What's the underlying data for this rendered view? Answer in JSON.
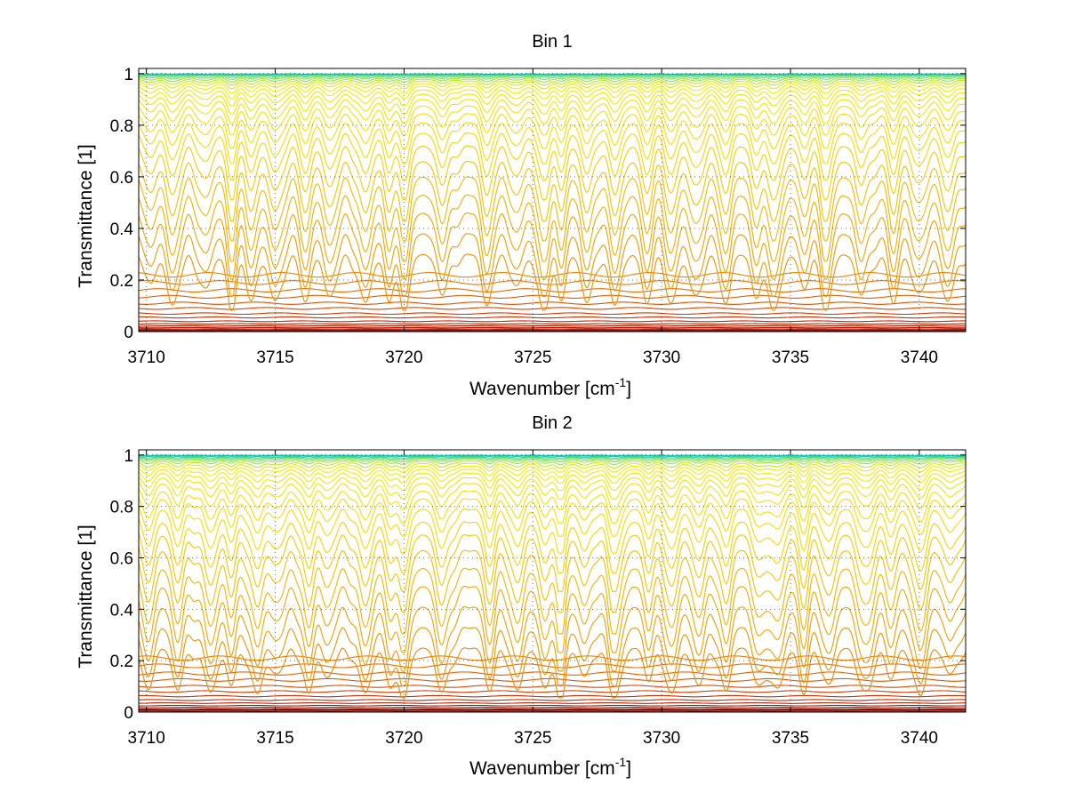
{
  "chart_data": [
    {
      "type": "line",
      "title": "Bin 1",
      "xlabel": "Wavenumber [cm",
      "xlabel_sup": "-1",
      "xlabel_end": "]",
      "ylabel": "Transmittance [1]",
      "xlim": [
        3709.7,
        3741.8
      ],
      "ylim": [
        0,
        1.02
      ],
      "xticks": [
        3710,
        3715,
        3720,
        3725,
        3730,
        3735,
        3740
      ],
      "yticks": [
        0,
        0.2,
        0.4,
        0.6,
        0.8,
        1
      ],
      "ytick_labels": [
        "0",
        "0.2",
        "0.4",
        "0.6",
        "0.8",
        "1"
      ],
      "grid": true,
      "absorption_line_centers": [
        3710.2,
        3711.0,
        3712.3,
        3713.3,
        3714.1,
        3715.0,
        3716.2,
        3717.1,
        3718.5,
        3719.4,
        3720.0,
        3721.5,
        3723.2,
        3724.4,
        3725.4,
        3726.1,
        3727.1,
        3728.2,
        3729.4,
        3730.4,
        3731.3,
        3732.5,
        3733.7,
        3734.4,
        3735.5,
        3736.4,
        3737.8,
        3739.0,
        3740.0,
        3741.1
      ],
      "series_baselines": [
        0.0,
        0.003,
        0.006,
        0.01,
        0.015,
        0.022,
        0.03,
        0.04,
        0.055,
        0.07,
        0.09,
        0.11,
        0.135,
        0.16,
        0.19,
        0.22,
        0.3,
        0.38,
        0.46,
        0.53,
        0.6,
        0.66,
        0.72,
        0.77,
        0.81,
        0.845,
        0.875,
        0.9,
        0.92,
        0.937,
        0.951,
        0.962,
        0.971,
        0.978,
        0.984,
        0.989,
        0.993,
        0.996,
        0.998,
        0.999
      ],
      "colors": [
        "#7f0000",
        "#d52a00",
        "#f28a00",
        "#ffd700",
        "#f0f000",
        "#00c8c0"
      ]
    },
    {
      "type": "line",
      "title": "Bin 2",
      "xlabel": "Wavenumber [cm",
      "xlabel_sup": "-1",
      "xlabel_end": "]",
      "ylabel": "Transmittance [1]",
      "xlim": [
        3709.7,
        3741.8
      ],
      "ylim": [
        0,
        1.02
      ],
      "xticks": [
        3710,
        3715,
        3720,
        3725,
        3730,
        3735,
        3740
      ],
      "yticks": [
        0,
        0.2,
        0.4,
        0.6,
        0.8,
        1
      ],
      "ytick_labels": [
        "0",
        "0.2",
        "0.4",
        "0.6",
        "0.8",
        "1"
      ],
      "grid": true,
      "absorption_line_centers": [
        3710.1,
        3711.2,
        3712.5,
        3713.3,
        3714.3,
        3715.0,
        3716.3,
        3717.0,
        3718.5,
        3719.5,
        3720.0,
        3721.5,
        3723.3,
        3724.4,
        3725.5,
        3726.1,
        3727.0,
        3728.2,
        3729.5,
        3730.4,
        3731.4,
        3732.5,
        3733.8,
        3734.5,
        3735.5,
        3736.5,
        3737.9,
        3738.9,
        3740.0,
        3741.2
      ],
      "series_baselines": [
        0.0,
        0.004,
        0.008,
        0.012,
        0.018,
        0.025,
        0.035,
        0.047,
        0.062,
        0.08,
        0.1,
        0.125,
        0.15,
        0.18,
        0.21,
        0.25,
        0.33,
        0.41,
        0.49,
        0.56,
        0.63,
        0.69,
        0.74,
        0.79,
        0.83,
        0.86,
        0.89,
        0.912,
        0.93,
        0.945,
        0.957,
        0.967,
        0.975,
        0.982,
        0.987,
        0.991,
        0.994,
        0.997,
        0.999
      ],
      "colors": [
        "#7f0000",
        "#d52a00",
        "#f28a00",
        "#ffd700",
        "#f0f000",
        "#00c8c0"
      ]
    }
  ]
}
